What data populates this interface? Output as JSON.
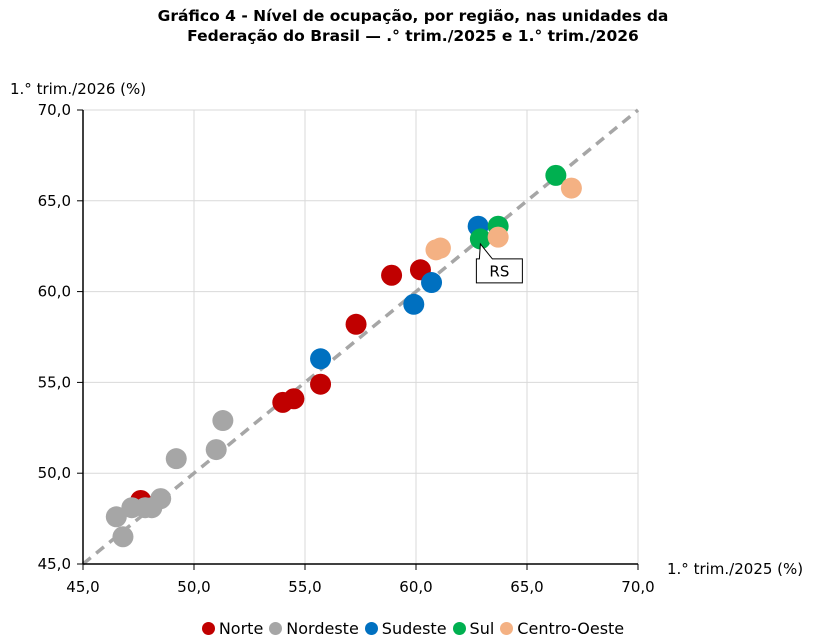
{
  "title_line1": "Gráfico 4 - Nível de ocupação, por região, nas unidades da",
  "title_line2": "Federação do Brasil — .° trim./2025 e 1.° trim./2026",
  "chart_data": {
    "type": "scatter",
    "title": "Gráfico 4 - Nível de ocupação, por região, nas unidades da Federação do Brasil — .° trim./2025 e 1.° trim./2026",
    "xlabel": "1.° trim./2025 (%)",
    "ylabel": "1.° trim./2026 (%)",
    "xlim": [
      45,
      70
    ],
    "ylim": [
      45,
      70
    ],
    "x_ticks": [
      "45,0",
      "50,0",
      "55,0",
      "60,0",
      "65,0",
      "70,0"
    ],
    "y_ticks": [
      "45,0",
      "50,0",
      "55,0",
      "60,0",
      "65,0",
      "70,0"
    ],
    "grid": true,
    "legend_position": "bottom",
    "reference_line": {
      "style": "dashed",
      "color": "#a6a6a6",
      "from": [
        45,
        45
      ],
      "to": [
        70,
        70
      ]
    },
    "series": [
      {
        "name": "Norte",
        "color": "#c00000",
        "points": [
          [
            47.6,
            48.5
          ],
          [
            54.0,
            53.9
          ],
          [
            54.5,
            54.1
          ],
          [
            55.7,
            54.9
          ],
          [
            57.3,
            58.2
          ],
          [
            58.9,
            60.9
          ],
          [
            60.2,
            61.2
          ]
        ]
      },
      {
        "name": "Nordeste",
        "color": "#a6a6a6",
        "points": [
          [
            46.5,
            47.6
          ],
          [
            46.8,
            46.5
          ],
          [
            47.2,
            48.1
          ],
          [
            47.8,
            48.1
          ],
          [
            48.1,
            48.1
          ],
          [
            48.5,
            48.6
          ],
          [
            49.2,
            50.8
          ],
          [
            51.0,
            51.3
          ],
          [
            51.3,
            52.9
          ]
        ]
      },
      {
        "name": "Sudeste",
        "color": "#0070c0",
        "points": [
          [
            55.7,
            56.3
          ],
          [
            59.9,
            59.3
          ],
          [
            60.7,
            60.5
          ],
          [
            62.8,
            63.6
          ]
        ]
      },
      {
        "name": "Sul",
        "color": "#00b050",
        "points": [
          [
            62.9,
            62.9
          ],
          [
            63.7,
            63.6
          ],
          [
            66.3,
            66.4
          ]
        ]
      },
      {
        "name": "Centro-Oeste",
        "color": "#f4b183",
        "points": [
          [
            60.9,
            62.3
          ],
          [
            61.1,
            62.4
          ],
          [
            63.7,
            63.0
          ],
          [
            67.0,
            65.7
          ]
        ]
      }
    ],
    "annotations": [
      {
        "text": "RS",
        "x": 62.9,
        "y": 62.9
      }
    ]
  }
}
